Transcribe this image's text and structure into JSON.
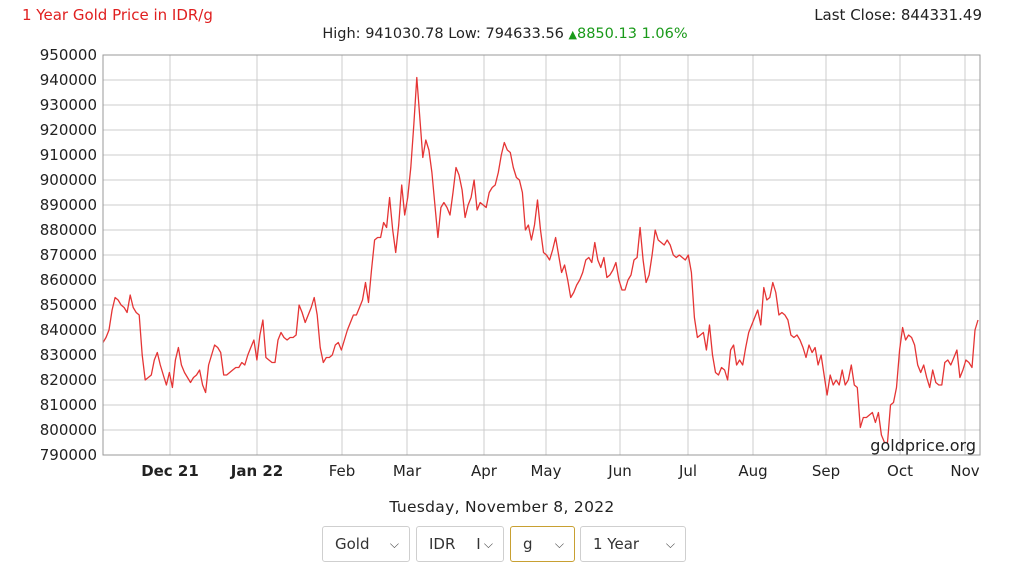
{
  "header": {
    "title": "1 Year Gold Price in IDR/g",
    "last_close": "Last Close: 844331.49",
    "high_label": "High:",
    "high_value": "941030.78",
    "low_label": "Low:",
    "low_value": "794633.56",
    "change_arrow": "▲",
    "change_value": "8850.13",
    "change_pct": "1.06%"
  },
  "watermark": "goldprice.org",
  "date_line": "Tuesday, November 8, 2022",
  "controls": {
    "metal": "Gold",
    "currency": "IDR",
    "currency_extra": "I",
    "unit": "g",
    "period": "1 Year",
    "chevron": "⌵"
  },
  "colors": {
    "line": "#e53535",
    "grid": "#cccccc",
    "title": "#e02020",
    "change": "#1a9a1a"
  },
  "chart_data": {
    "type": "line",
    "title": "1 Year Gold Price in IDR/g",
    "xlabel": "",
    "ylabel": "",
    "ylim": [
      790000,
      950000
    ],
    "ytick_step": 10000,
    "grid": true,
    "x_ticks": [
      {
        "label": "Dec 21",
        "bold": true
      },
      {
        "label": "Jan 22",
        "bold": true
      },
      {
        "label": "Feb",
        "bold": false
      },
      {
        "label": "Mar",
        "bold": false
      },
      {
        "label": "Apr",
        "bold": false
      },
      {
        "label": "May",
        "bold": false
      },
      {
        "label": "Jun",
        "bold": false
      },
      {
        "label": "Jul",
        "bold": false
      },
      {
        "label": "Aug",
        "bold": false
      },
      {
        "label": "Sep",
        "bold": false
      },
      {
        "label": "Oct",
        "bold": false
      },
      {
        "label": "Nov",
        "bold": false
      }
    ],
    "series": [
      {
        "values": [
          835000,
          837000,
          840000,
          848000,
          853000,
          852000,
          850000,
          849000,
          847000,
          854000,
          849000,
          847000,
          846000,
          830000,
          820000,
          821000,
          822000,
          828000,
          831000,
          826000,
          822000,
          818000,
          823000,
          817000,
          828000,
          833000,
          826000,
          823000,
          821000,
          819000,
          821000,
          822000,
          824000,
          818000,
          815000,
          826000,
          830000,
          834000,
          833000,
          831000,
          822000,
          822000,
          823000,
          824000,
          825000,
          825000,
          827000,
          826000,
          830000,
          833000,
          836000,
          828000,
          838000,
          844000,
          829000,
          828000,
          827000,
          827000,
          836000,
          839000,
          837000,
          836000,
          837000,
          837000,
          838000,
          850000,
          847000,
          843000,
          846000,
          849000,
          853000,
          846000,
          833000,
          827000,
          829000,
          829000,
          830000,
          834000,
          835000,
          832000,
          836000,
          840000,
          843000,
          846000,
          846000,
          849000,
          852000,
          859000,
          851000,
          864000,
          876000,
          877000,
          877000,
          883000,
          881000,
          893000,
          880000,
          871000,
          882000,
          898000,
          886000,
          893000,
          905000,
          922000,
          941000,
          925000,
          909000,
          916000,
          912000,
          903000,
          890000,
          877000,
          889000,
          891000,
          889000,
          886000,
          895000,
          905000,
          902000,
          896000,
          885000,
          890000,
          893000,
          900000,
          888000,
          891000,
          890000,
          889000,
          895000,
          897000,
          898000,
          903000,
          910000,
          915000,
          912000,
          911000,
          905000,
          901000,
          900000,
          895000,
          880000,
          882000,
          876000,
          882000,
          892000,
          880000,
          871000,
          870000,
          868000,
          872000,
          877000,
          870000,
          863000,
          866000,
          860000,
          853000,
          855000,
          858000,
          860000,
          863000,
          868000,
          869000,
          867000,
          875000,
          868000,
          865000,
          869000,
          861000,
          862000,
          864000,
          867000,
          860000,
          856000,
          856000,
          860000,
          862000,
          868000,
          869000,
          881000,
          868000,
          859000,
          862000,
          870000,
          880000,
          876000,
          875000,
          874000,
          876000,
          874000,
          870000,
          869000,
          870000,
          869000,
          868000,
          870000,
          863000,
          845000,
          837000,
          838000,
          839000,
          832000,
          842000,
          830000,
          823000,
          822000,
          825000,
          824000,
          820000,
          832000,
          834000,
          826000,
          828000,
          826000,
          833000,
          839000,
          842000,
          845000,
          848000,
          842000,
          857000,
          852000,
          853000,
          859000,
          855000,
          846000,
          847000,
          846000,
          844000,
          838000,
          837000,
          838000,
          836000,
          833000,
          829000,
          834000,
          831000,
          833000,
          826000,
          830000,
          822000,
          814000,
          822000,
          818000,
          820000,
          818000,
          824000,
          818000,
          820000,
          826000,
          818000,
          817000,
          801000,
          805000,
          805000,
          806000,
          807000,
          803000,
          807000,
          798000,
          795000,
          795000,
          810000,
          811000,
          817000,
          832000,
          841000,
          836000,
          838000,
          837000,
          834000,
          826000,
          823000,
          826000,
          821000,
          817000,
          824000,
          819000,
          818000,
          818000,
          827000,
          828000,
          826000,
          829000,
          832000,
          821000,
          824000,
          828000,
          827000,
          825000,
          840000,
          844000
        ]
      }
    ]
  }
}
